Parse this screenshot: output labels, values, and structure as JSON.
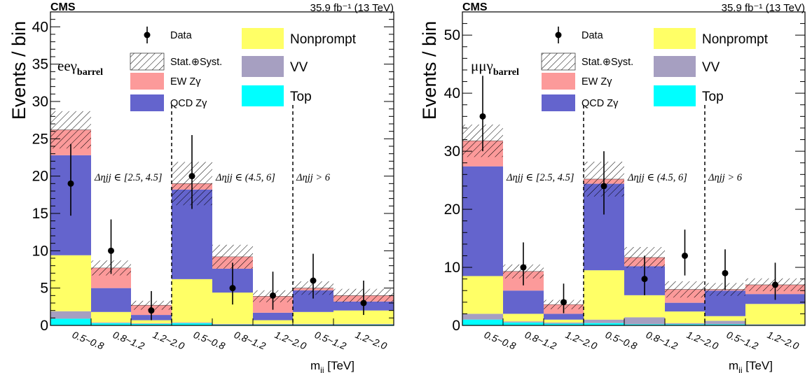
{
  "colors": {
    "nonprompt": "#ffff66",
    "vv": "#a69fc1",
    "ewzg": "#fc9a9a",
    "qcdzg": "#6464cd",
    "top": "#00ffff",
    "data": "#000000"
  },
  "legend": {
    "data": "Data",
    "unc": "Stat.⊕Syst.",
    "ew": "EW Zγ",
    "qcd": "QCD Zγ",
    "nonprompt": "Nonprompt",
    "vv": "VV",
    "top": "Top"
  },
  "chart_data": [
    {
      "type": "bar",
      "stacked": true,
      "channel_label": "eeγ",
      "channel_sub": "barrel",
      "cms_label": "CMS",
      "lumi_label": "35.9 fb⁻¹ (13 TeV)",
      "ylabel": "Events / bin",
      "xlabel": "m",
      "xlabel_sub": "jj",
      "xlabel_unit": " [TeV]",
      "ylim": [
        0,
        42
      ],
      "yticks": [
        0,
        5,
        10,
        15,
        20,
        25,
        30,
        35,
        40
      ],
      "categories": [
        "0.5~0.8",
        "0.8~1.2",
        "1.2~2.0",
        "0.5~0.8",
        "0.8~1.2",
        "1.2~2.0",
        "0.5~1.2",
        "1.2~2.0"
      ],
      "regions": [
        "Δηjj ∈ [2.5, 4.5]",
        "Δηjj ∈ (4.5, 6]",
        "Δηjj > 6"
      ],
      "series": [
        {
          "name": "Top",
          "key": "top",
          "values": [
            0.9,
            0.3,
            0.2,
            0.3,
            0.1,
            0.1,
            0.1,
            0.1
          ]
        },
        {
          "name": "VV",
          "key": "vv",
          "values": [
            1.0,
            0.1,
            0.1,
            0.1,
            0.1,
            0.1,
            0.1,
            0.1
          ]
        },
        {
          "name": "Nonprompt",
          "key": "nonprompt",
          "values": [
            7.5,
            1.4,
            0.4,
            5.8,
            4.2,
            0.5,
            1.6,
            1.8
          ]
        },
        {
          "name": "QCD Zγ",
          "key": "qcdzg",
          "values": [
            13.4,
            3.2,
            0.7,
            12.0,
            3.2,
            1.0,
            2.9,
            1.2
          ]
        },
        {
          "name": "EW Zγ",
          "key": "ewzg",
          "values": [
            3.4,
            2.7,
            1.3,
            0.8,
            1.6,
            2.2,
            0.3,
            0.8
          ]
        }
      ],
      "uncertainty": [
        2.5,
        1.0,
        0.6,
        2.9,
        1.6,
        0.8,
        0.9,
        0.9
      ],
      "data": {
        "values": [
          19,
          10,
          2,
          20,
          5,
          4,
          6,
          3
        ],
        "err_up": [
          5.3,
          4.2,
          2.6,
          5.5,
          3.4,
          3.2,
          3.6,
          3.0
        ],
        "err_down": [
          4.3,
          3.1,
          1.3,
          4.4,
          2.2,
          1.9,
          2.4,
          1.6
        ]
      }
    },
    {
      "type": "bar",
      "stacked": true,
      "channel_label": "μμγ",
      "channel_sub": "barrel",
      "cms_label": "CMS",
      "lumi_label": "35.9 fb⁻¹ (13 TeV)",
      "ylabel": "Events / bin",
      "xlabel": "m",
      "xlabel_sub": "jj",
      "xlabel_unit": " [TeV]",
      "ylim": [
        0,
        54
      ],
      "yticks": [
        0,
        10,
        20,
        30,
        40,
        50
      ],
      "categories": [
        "0.5~0.8",
        "0.8~1.2",
        "1.2~2.0",
        "0.5~0.8",
        "0.8~1.2",
        "1.2~2.0",
        "0.5~1.2",
        "1.2~2.0"
      ],
      "regions": [
        "Δηjj ∈ [2.5, 4.5]",
        "Δηjj ∈ (4.5, 6]",
        "Δηjj > 6"
      ],
      "series": [
        {
          "name": "Top",
          "key": "top",
          "values": [
            1.0,
            0.5,
            0.3,
            0.4,
            0.2,
            0.2,
            0.2,
            0.1
          ]
        },
        {
          "name": "VV",
          "key": "vv",
          "values": [
            1.0,
            0.2,
            0.2,
            0.6,
            1.2,
            0.2,
            0.6,
            0.1
          ]
        },
        {
          "name": "Nonprompt",
          "key": "nonprompt",
          "values": [
            6.5,
            1.3,
            0.5,
            8.5,
            3.8,
            2.0,
            0.8,
            3.5
          ]
        },
        {
          "name": "QCD Zγ",
          "key": "qcdzg",
          "values": [
            18.9,
            4.0,
            1.0,
            14.9,
            5.0,
            1.5,
            4.4,
            1.7
          ]
        },
        {
          "name": "EW Zγ",
          "key": "ewzg",
          "values": [
            4.4,
            3.3,
            1.6,
            0.8,
            1.5,
            2.3,
            0.2,
            1.6
          ]
        }
      ],
      "uncertainty": [
        2.8,
        1.2,
        0.8,
        3.0,
        1.8,
        1.4,
        1.1,
        1.1
      ],
      "data": {
        "values": [
          36,
          10,
          4,
          24,
          8,
          12,
          9,
          7
        ],
        "err_up": [
          7.0,
          4.3,
          3.2,
          6.0,
          4.0,
          4.5,
          4.1,
          3.8
        ],
        "err_down": [
          6.0,
          3.1,
          1.9,
          4.9,
          2.8,
          3.4,
          2.9,
          2.6
        ]
      }
    }
  ]
}
